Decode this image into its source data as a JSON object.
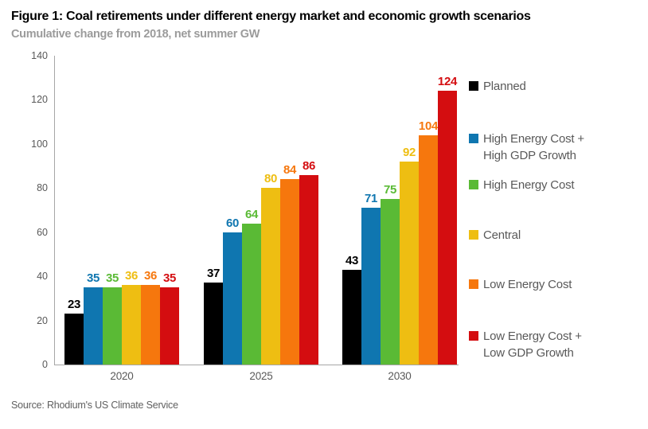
{
  "colors": {
    "title_text": "#000000",
    "subtitle_text": "#9B9B9B",
    "source_text": "#5F5F5F",
    "axis": "#A6A6A6",
    "tick_label": "#595959",
    "legend_text": "#595959"
  },
  "chart_data": {
    "type": "bar",
    "title": "Figure 1: Coal retirements under different energy market and economic growth scenarios",
    "subtitle": "Cumulative change from 2018, net summer GW",
    "source": "Source: Rhodium's US Climate Service",
    "categories": [
      "2020",
      "2025",
      "2030"
    ],
    "series": [
      {
        "name": "Planned",
        "color": "#000000",
        "values": [
          23,
          37,
          43
        ],
        "legend_lines": [
          "Planned"
        ]
      },
      {
        "name": "High Energy Cost + High GDP Growth",
        "color": "#0F76B0",
        "values": [
          35,
          60,
          71
        ],
        "legend_lines": [
          "High Energy Cost +",
          "High GDP Growth"
        ]
      },
      {
        "name": "High Energy Cost",
        "color": "#5ABA35",
        "values": [
          35,
          64,
          75
        ],
        "legend_lines": [
          "High Energy Cost"
        ]
      },
      {
        "name": "Central",
        "color": "#EEBE12",
        "values": [
          36,
          80,
          92
        ],
        "legend_lines": [
          "Central"
        ]
      },
      {
        "name": "Low Energy Cost",
        "color": "#F6770D",
        "values": [
          36,
          84,
          104
        ],
        "legend_lines": [
          "Low Energy Cost"
        ]
      },
      {
        "name": "Low Energy Cost + Low GDP Growth",
        "color": "#D40D10",
        "values": [
          35,
          86,
          124
        ],
        "legend_lines": [
          "Low Energy Cost +",
          "Low GDP Growth"
        ]
      }
    ],
    "xlabel": "",
    "ylabel": "",
    "ylim": [
      0,
      140
    ],
    "yticks": [
      0,
      20,
      40,
      60,
      80,
      100,
      120,
      140
    ],
    "grid": false,
    "legend_position": "right",
    "data_labels": true
  }
}
